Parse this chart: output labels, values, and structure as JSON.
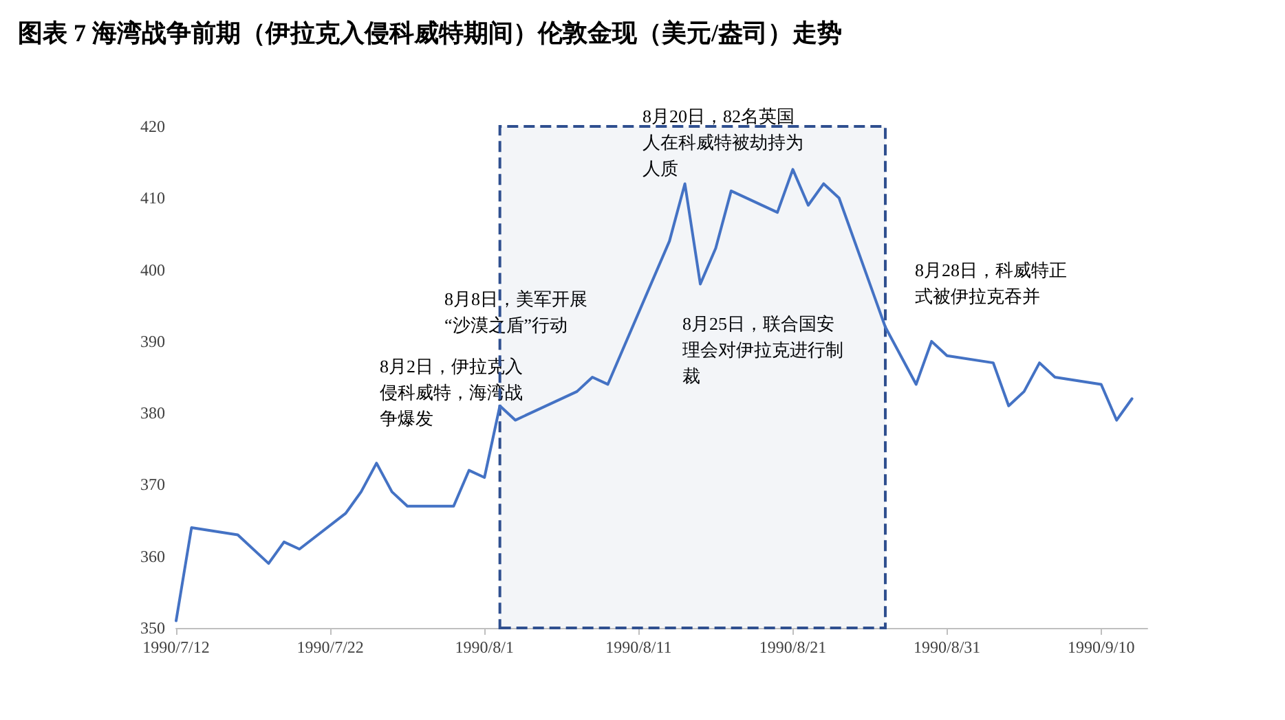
{
  "chart_data": {
    "type": "line",
    "title": "图表 7 海湾战争前期（伊拉克入侵科威特期间）伦敦金现（美元/盎司）走势",
    "x": [
      "1990-07-12",
      "1990-07-13",
      "1990-07-16",
      "1990-07-18",
      "1990-07-19",
      "1990-07-20",
      "1990-07-23",
      "1990-07-24",
      "1990-07-25",
      "1990-07-26",
      "1990-07-27",
      "1990-07-30",
      "1990-07-31",
      "1990-08-01",
      "1990-08-02",
      "1990-08-03",
      "1990-08-07",
      "1990-08-08",
      "1990-08-09",
      "1990-08-13",
      "1990-08-14",
      "1990-08-15",
      "1990-08-16",
      "1990-08-17",
      "1990-08-20",
      "1990-08-21",
      "1990-08-22",
      "1990-08-23",
      "1990-08-24",
      "1990-08-27",
      "1990-08-28",
      "1990-08-29",
      "1990-08-30",
      "1990-08-31",
      "1990-09-03",
      "1990-09-04",
      "1990-09-05",
      "1990-09-06",
      "1990-09-07",
      "1990-09-10",
      "1990-09-11",
      "1990-09-12"
    ],
    "series": [
      {
        "color": "#4472c4",
        "values": [
          351,
          364,
          363,
          359,
          362,
          361,
          366,
          369,
          373,
          369,
          367,
          367,
          372,
          371,
          381,
          379,
          383,
          385,
          384,
          404,
          412,
          398,
          403,
          411,
          408,
          414,
          409,
          412,
          410,
          392,
          388,
          384,
          390,
          388,
          387,
          381,
          383,
          387,
          385,
          384,
          379,
          382
        ]
      }
    ],
    "xlim": [
      "1990-07-12",
      "1990-09-13"
    ],
    "xticks": [
      {
        "value": "1990-07-12",
        "label": "1990/7/12"
      },
      {
        "value": "1990-07-22",
        "label": "1990/7/22"
      },
      {
        "value": "1990-08-01",
        "label": "1990/8/1"
      },
      {
        "value": "1990-08-11",
        "label": "1990/8/11"
      },
      {
        "value": "1990-08-21",
        "label": "1990/8/21"
      },
      {
        "value": "1990-08-31",
        "label": "1990/8/31"
      },
      {
        "value": "1990-09-10",
        "label": "1990/9/10"
      }
    ],
    "ylim": [
      350,
      420
    ],
    "yticks": [
      350,
      360,
      370,
      380,
      390,
      400,
      410,
      420
    ],
    "grid": false,
    "marker": "none",
    "line_style": "solid",
    "bands": [
      {
        "axis": "x",
        "from": "1990-08-02",
        "to": "1990-08-27",
        "color": "#2f4f8f"
      }
    ],
    "annotations": [
      "8月2日，伊拉克入侵科威特，海湾战争爆发",
      "8月8日，美军开展“沙漠之盾”行动",
      "8月20日，82名英国人在科威特被劫持为人质",
      "8月25日，联合国安理会对伊拉克进行制裁",
      "8月28日，科威特正式被伊拉克吞并"
    ]
  }
}
